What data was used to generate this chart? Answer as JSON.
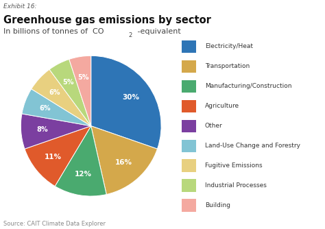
{
  "title": "Greenhouse gas emissions by sector",
  "subtitle_part1": "In billions of tonnes of  CO",
  "subtitle_sub": "2",
  "subtitle_part2": " -equivalent",
  "exhibit": "Exhibit 16:",
  "source": "Source: CAIT Climate Data Explorer",
  "labels": [
    "Electricity/Heat",
    "Transportation",
    "Manufacturing/Construction",
    "Agriculture",
    "Other",
    "Land-Use Change and Forestry",
    "Fugitive Emissions",
    "Industrial Processes",
    "Building"
  ],
  "values": [
    30,
    16,
    12,
    11,
    8,
    6,
    6,
    5,
    5
  ],
  "colors": [
    "#2e75b6",
    "#d4a84b",
    "#4aaa6f",
    "#e05a2b",
    "#7b3fa0",
    "#82c4d4",
    "#e8d080",
    "#b8d87c",
    "#f4a9a0"
  ],
  "startangle": 90,
  "pct_labels": [
    "30%",
    "16%",
    "12%",
    "11%",
    "8%",
    "6%",
    "6%",
    "5%",
    "5%"
  ]
}
